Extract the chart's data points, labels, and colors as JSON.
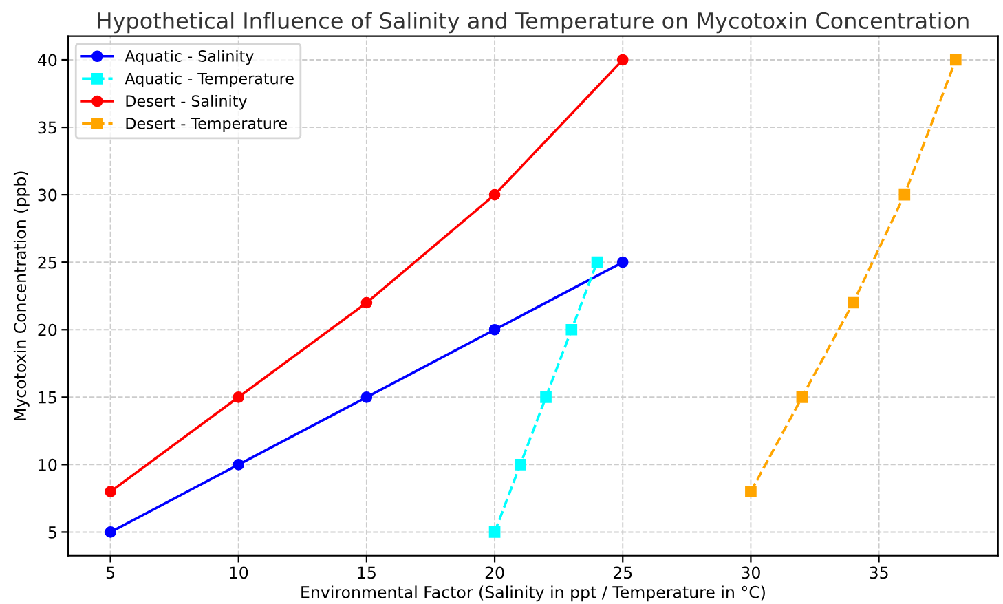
{
  "chart_data": {
    "type": "line",
    "title": "Hypothetical Influence of Salinity and Temperature on Mycotoxin Concentration",
    "xlabel": "Environmental Factor (Salinity in ppt / Temperature in °C)",
    "ylabel": "Mycotoxin Concentration (ppb)",
    "series": [
      {
        "name": "Aquatic - Salinity",
        "color": "#0000ff",
        "marker": "circle",
        "line_style": "solid",
        "x": [
          5,
          10,
          15,
          20,
          25
        ],
        "values": [
          5,
          10,
          15,
          20,
          25
        ]
      },
      {
        "name": "Aquatic - Temperature",
        "color": "#00ffff",
        "marker": "square",
        "line_style": "dashed",
        "x": [
          20,
          21,
          22,
          23,
          24
        ],
        "values": [
          5,
          10,
          15,
          20,
          25
        ]
      },
      {
        "name": "Desert - Salinity",
        "color": "#ff0000",
        "marker": "circle",
        "line_style": "solid",
        "x": [
          5,
          10,
          15,
          20,
          25
        ],
        "values": [
          8,
          15,
          22,
          30,
          40
        ]
      },
      {
        "name": "Desert - Temperature",
        "color": "#ffa500",
        "marker": "square",
        "line_style": "dashed",
        "x": [
          30,
          32,
          34,
          36,
          38
        ],
        "values": [
          8,
          15,
          22,
          30,
          40
        ]
      }
    ],
    "xlim": [
      3.35,
      39.65
    ],
    "ylim": [
      3.25,
      41.75
    ],
    "xticks": [
      5,
      10,
      15,
      20,
      25,
      30,
      35
    ],
    "yticks": [
      5,
      10,
      15,
      20,
      25,
      30,
      35,
      40
    ],
    "grid": true,
    "legend": "top left"
  }
}
